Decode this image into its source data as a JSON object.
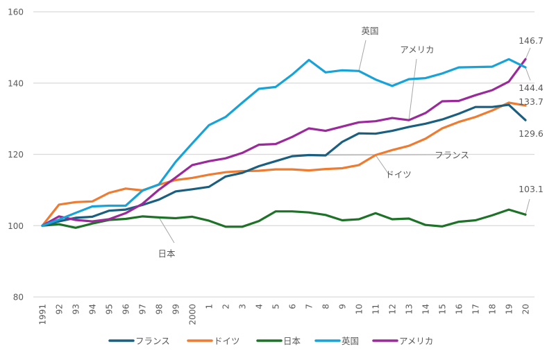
{
  "chart_data": {
    "type": "line",
    "title": "",
    "xlabel": "",
    "ylabel": "",
    "ylim": [
      80,
      160
    ],
    "yticks": [
      80,
      100,
      120,
      140,
      160
    ],
    "grid": true,
    "legend_position": "bottom",
    "categories": [
      "1991",
      "92",
      "93",
      "94",
      "95",
      "96",
      "97",
      "98",
      "99",
      "2000",
      "1",
      "2",
      "3",
      "4",
      "5",
      "6",
      "7",
      "8",
      "9",
      "10",
      "11",
      "12",
      "13",
      "14",
      "15",
      "16",
      "17",
      "18",
      "19",
      "20"
    ],
    "series": [
      {
        "name": "フランス",
        "color": "#1a5f80",
        "values": [
          100,
          101.2,
          102.2,
          102.5,
          104.2,
          104.5,
          105.8,
          107.3,
          109.6,
          110.2,
          110.9,
          113.8,
          114.8,
          116.7,
          118.1,
          119.5,
          119.8,
          119.7,
          123.5,
          125.9,
          125.8,
          126.6,
          127.7,
          128.6,
          129.8,
          131.4,
          133.3,
          133.3,
          133.9,
          129.6
        ]
      },
      {
        "name": "ドイツ",
        "color": "#ee7b30",
        "values": [
          100,
          105.9,
          106.6,
          106.8,
          109.2,
          110.4,
          109.9,
          111.5,
          112.8,
          113.4,
          114.3,
          115.0,
          115.3,
          115.4,
          115.8,
          115.8,
          115.5,
          115.9,
          116.1,
          117.0,
          119.8,
          121.2,
          122.4,
          124.4,
          127.3,
          129.1,
          130.5,
          132.3,
          134.5,
          133.7
        ]
      },
      {
        "name": "日本",
        "color": "#1e7228",
        "values": [
          100,
          100.4,
          99.4,
          100.6,
          101.6,
          101.9,
          102.6,
          102.3,
          102.1,
          102.5,
          101.4,
          99.7,
          99.7,
          101.3,
          104.0,
          104.0,
          103.7,
          103.0,
          101.5,
          101.8,
          103.5,
          101.8,
          102.0,
          100.2,
          99.8,
          101.1,
          101.5,
          102.9,
          104.5,
          103.1
        ]
      },
      {
        "name": "英国",
        "color": "#17a2d8",
        "values": [
          100,
          101.7,
          103.6,
          105.4,
          105.6,
          105.6,
          109.8,
          111.6,
          117.9,
          123.1,
          128.2,
          130.5,
          134.5,
          138.4,
          138.9,
          142.4,
          146.5,
          143.0,
          143.6,
          143.4,
          141.0,
          139.2,
          141.1,
          141.4,
          142.7,
          144.4,
          144.5,
          144.6,
          146.7,
          144.4
        ]
      },
      {
        "name": "アメリカ",
        "color": "#9a2a9a",
        "values": [
          100,
          102.6,
          101.6,
          101.2,
          101.8,
          103.5,
          106.1,
          110.1,
          113.5,
          117.0,
          118.1,
          118.9,
          120.4,
          122.7,
          122.9,
          124.9,
          127.3,
          126.6,
          127.8,
          129.0,
          129.3,
          130.2,
          129.6,
          131.6,
          134.9,
          135.0,
          136.6,
          138.0,
          140.4,
          146.7
        ]
      }
    ],
    "annotations": [
      {
        "text": "英国",
        "series": "英国"
      },
      {
        "text": "アメリカ",
        "series": "アメリカ"
      },
      {
        "text": "フランス",
        "series": "フランス"
      },
      {
        "text": "ドイツ",
        "series": "ドイツ"
      },
      {
        "text": "日本",
        "series": "日本"
      }
    ],
    "end_labels": [
      {
        "text": "146.7",
        "series": "アメリカ"
      },
      {
        "text": "144.4",
        "series": "英国"
      },
      {
        "text": "133.7",
        "series": "ドイツ"
      },
      {
        "text": "129.6",
        "series": "フランス"
      },
      {
        "text": "103.1",
        "series": "日本"
      }
    ],
    "gridline_color": "#d9d9d9",
    "leader_color": "#a6a6a6"
  }
}
